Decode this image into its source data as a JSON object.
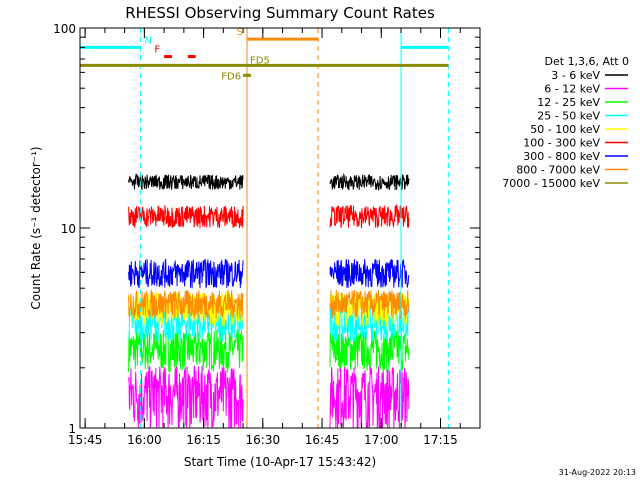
{
  "chart_data": {
    "type": "line",
    "title": "RHESSI Observing Summary Count Rates",
    "xlabel": "Start Time (10-Apr-17 15:43:42)",
    "ylabel": "Count Rate (s⁻¹ detector⁻¹)",
    "y_scale": "log",
    "ylim": [
      1,
      100
    ],
    "xlim": [
      "15:43:42",
      "17:25:00"
    ],
    "x_ticks": [
      "15:45",
      "16:00",
      "16:15",
      "16:30",
      "16:45",
      "17:00",
      "17:15"
    ],
    "y_ticks": [
      "1",
      "10",
      "100"
    ],
    "footer": "31-Aug-2022 20:13",
    "legend_header": "Det 1,3,6, Att 0",
    "grid": false,
    "legend_position": "right",
    "series": [
      {
        "name": "3 - 6 keV",
        "color": "#000000",
        "level": 17.0,
        "spread": 1.5
      },
      {
        "name": "6 - 12 keV",
        "color": "#ff00ff",
        "level": 1.5,
        "spread": 0.55
      },
      {
        "name": "12 - 25 keV",
        "color": "#00ff00",
        "level": 2.5,
        "spread": 0.6
      },
      {
        "name": "25 - 50 keV",
        "color": "#00ffff",
        "level": 3.4,
        "spread": 0.7
      },
      {
        "name": "50 - 100 keV",
        "color": "#ffff00",
        "level": 4.0,
        "spread": 0.8
      },
      {
        "name": "100 - 300 keV",
        "color": "#ff0000",
        "level": 11.5,
        "spread": 1.5
      },
      {
        "name": "300 - 800 keV",
        "color": "#0000ff",
        "level": 6.0,
        "spread": 1.0
      },
      {
        "name": "800 - 7000 keV",
        "color": "#ff8c00",
        "level": 4.2,
        "spread": 0.7
      },
      {
        "name": "7000 - 15000 keV",
        "color": "#8b8b00",
        "level": 65,
        "spread": 0
      }
    ],
    "observation_intervals": [
      {
        "start": "15:56",
        "end": "16:25"
      },
      {
        "start": "16:47",
        "end": "17:07"
      }
    ],
    "flags": [
      {
        "label": "N",
        "color": "#00ffff",
        "y": 80,
        "start": "15:43:42",
        "end": "15:59"
      },
      {
        "label": "",
        "color": "#00ffff",
        "y": 80,
        "start": "17:05",
        "end": "17:17"
      },
      {
        "label": "S",
        "color": "#ff8c00",
        "y": 88,
        "start": "16:26",
        "end": "16:44"
      },
      {
        "label": "F",
        "color": "#ff0000",
        "y": 72,
        "start": "16:05",
        "end": "16:07"
      },
      {
        "label": "",
        "color": "#ff0000",
        "y": 72,
        "start": "16:11",
        "end": "16:13"
      },
      {
        "label": "FD5",
        "color": "#8b8b00",
        "y": 65,
        "start": "15:43:42",
        "end": "17:17"
      },
      {
        "label": "FD6",
        "color": "#8b8b00",
        "y": 58,
        "start": "16:25",
        "end": "16:27"
      }
    ],
    "vertical_markers": [
      {
        "time": "15:43:42",
        "color": "#00ffff",
        "style": "solid"
      },
      {
        "time": "15:59",
        "color": "#00ffff",
        "style": "dashed"
      },
      {
        "time": "16:26",
        "color": "#ff8c00",
        "style": "solid"
      },
      {
        "time": "16:44",
        "color": "#ff8c00",
        "style": "dashed"
      },
      {
        "time": "17:05",
        "color": "#00ffff",
        "style": "solid"
      },
      {
        "time": "17:17",
        "color": "#00ffff",
        "style": "dashed"
      }
    ]
  }
}
